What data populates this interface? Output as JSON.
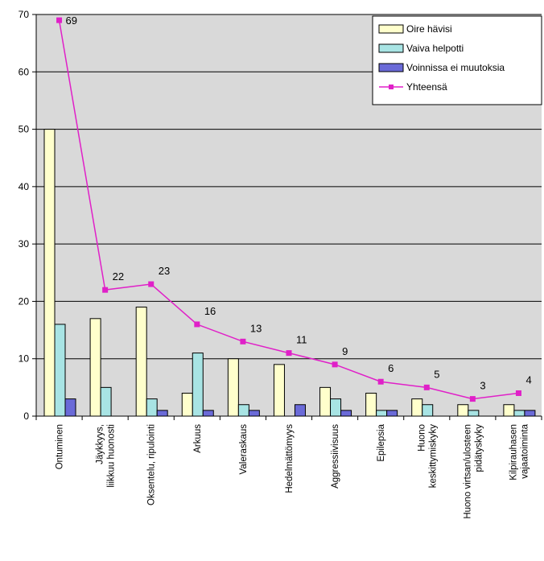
{
  "chart_data": {
    "type": "bar",
    "categories": [
      [
        "Ontuminen"
      ],
      [
        "Jäykkyys,",
        "liikkuu huonosti"
      ],
      [
        "Oksentelu, ripulointi"
      ],
      [
        "Arkuus"
      ],
      [
        "Valeraskaus"
      ],
      [
        "Hedelmättömyys"
      ],
      [
        "Aggressiivisuus"
      ],
      [
        "Epilepsia"
      ],
      [
        "Huono",
        "keskittymiskyky"
      ],
      [
        "Huono virtsan/ulosteen",
        "pidätyskyky"
      ],
      [
        "Kilpirauhasen",
        "vajaatoiminta"
      ]
    ],
    "series": [
      {
        "name": "Oire hävisi",
        "kind": "bar",
        "color": "#ffffcc",
        "values": [
          50,
          17,
          19,
          4,
          10,
          9,
          5,
          4,
          3,
          2,
          2
        ]
      },
      {
        "name": "Vaiva helpotti",
        "kind": "bar",
        "color": "#a8e4e4",
        "values": [
          16,
          5,
          3,
          11,
          2,
          0,
          3,
          1,
          2,
          1,
          1
        ]
      },
      {
        "name": "Voinnissa ei muutoksia",
        "kind": "bar",
        "color": "#6a6ad8",
        "values": [
          3,
          0,
          1,
          1,
          1,
          2,
          1,
          1,
          0,
          0,
          1
        ]
      },
      {
        "name": "Yhteensä",
        "kind": "line",
        "color": "#e020c8",
        "values": [
          69,
          22,
          23,
          16,
          13,
          11,
          9,
          6,
          5,
          3,
          4
        ]
      }
    ],
    "ylim": [
      0,
      70
    ],
    "yticks": [
      "0",
      "10",
      "20",
      "30",
      "40",
      "50",
      "60",
      "70"
    ],
    "grid": true,
    "plot_background": "#d9d9d9",
    "legend_position": "top-right"
  }
}
